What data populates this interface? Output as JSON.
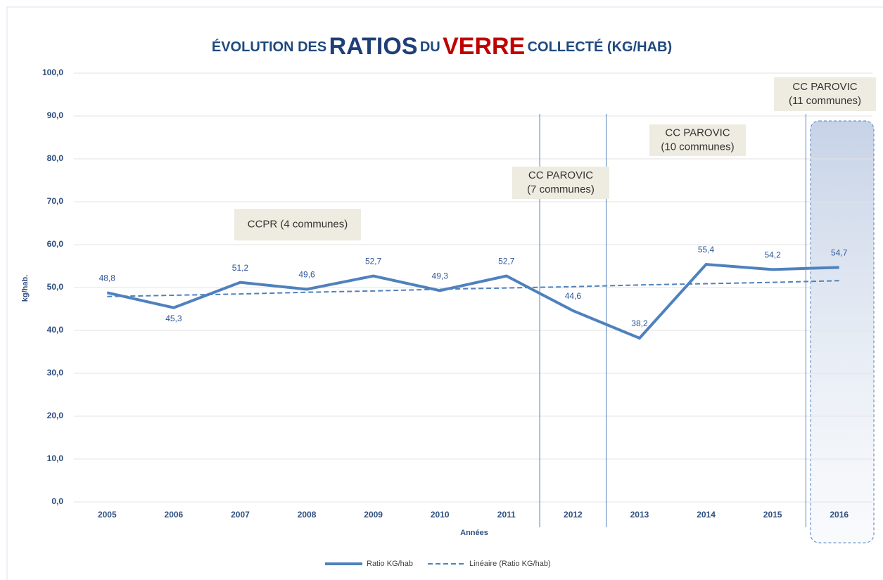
{
  "chart_data": {
    "type": "line",
    "title_parts": [
      "ÉVOLUTION DES",
      "RATIOS",
      "DU",
      "VERRE",
      "COLLECTÉ (KG/HAB)"
    ],
    "x_label": "Années",
    "y_label": "kg/hab.",
    "categories": [
      "2005",
      "2006",
      "2007",
      "2008",
      "2009",
      "2010",
      "2011",
      "2012",
      "2013",
      "2014",
      "2015",
      "2016"
    ],
    "series": [
      {
        "name": "Ratio KG/hab",
        "color": "#4f81bd",
        "values": [
          48.8,
          45.3,
          51.2,
          49.6,
          52.7,
          49.3,
          52.7,
          44.6,
          38.2,
          55.4,
          54.2,
          54.7
        ],
        "value_labels": [
          "48,8",
          "45,3",
          "51,2",
          "49,6",
          "52,7",
          "49,3",
          "52,7",
          "44,6",
          "38,2",
          "55,4",
          "54,2",
          "54,7"
        ]
      },
      {
        "name": "Linéaire (Ratio KG/hab)",
        "color": "#4f81bd",
        "dashed": true,
        "values": [
          47.9,
          48.2,
          48.5,
          48.9,
          49.2,
          49.6,
          49.9,
          50.2,
          50.6,
          50.9,
          51.2,
          51.6
        ]
      }
    ],
    "ylim": [
      0,
      100
    ],
    "yticks": [
      {
        "value": 0,
        "label": "0,0"
      },
      {
        "value": 10,
        "label": "10,0"
      },
      {
        "value": 20,
        "label": "20,0"
      },
      {
        "value": 30,
        "label": "30,0"
      },
      {
        "value": 40,
        "label": "40,0"
      },
      {
        "value": 50,
        "label": "50,0"
      },
      {
        "value": 60,
        "label": "60,0"
      },
      {
        "value": 70,
        "label": "70,0"
      },
      {
        "value": 80,
        "label": "80,0"
      },
      {
        "value": 90,
        "label": "90,0"
      },
      {
        "value": 100,
        "label": "100,0"
      }
    ],
    "grid": true,
    "legend": "bottom",
    "annotations": [
      {
        "lines": [
          "CCPR (4 communes)"
        ]
      },
      {
        "lines": [
          "CC PAROVIC",
          "(7 communes)"
        ]
      },
      {
        "lines": [
          "CC PAROVIC",
          "(10 communes)"
        ]
      },
      {
        "lines": [
          "CC PAROVIC",
          "(11 communes)"
        ]
      }
    ]
  }
}
